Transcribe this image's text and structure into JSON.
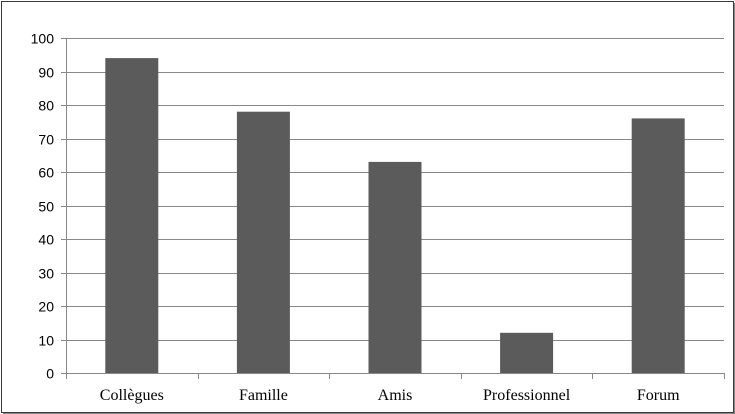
{
  "chart_data": {
    "type": "bar",
    "categories": [
      "Collègues",
      "Famille",
      "Amis",
      "Professionnel",
      "Forum"
    ],
    "values": [
      94,
      78,
      63,
      12,
      76
    ],
    "ylim": [
      0,
      100
    ],
    "yticks": [
      0,
      10,
      20,
      30,
      40,
      50,
      60,
      70,
      80,
      90,
      100
    ],
    "grid": true,
    "legend": "none",
    "bar_color": "#5b5b5b",
    "grid_color": "#888888",
    "axis_color": "#888888"
  }
}
